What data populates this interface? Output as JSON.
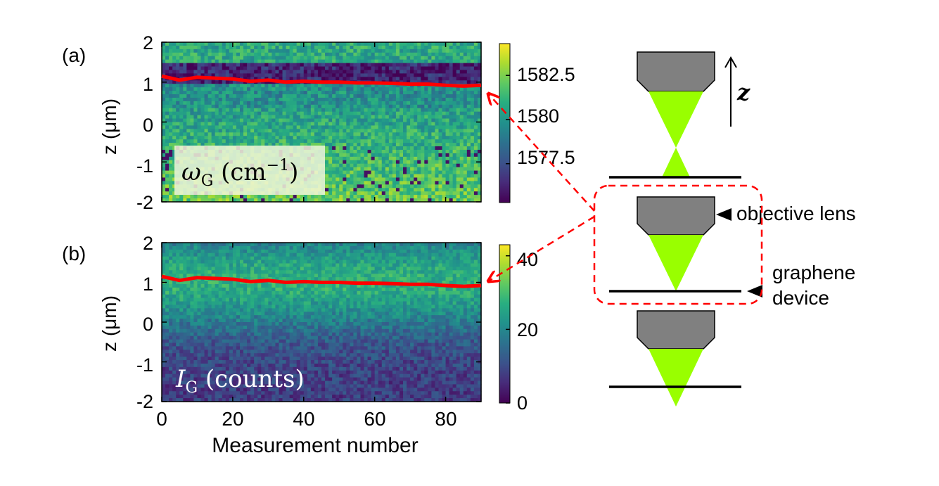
{
  "chart_data": [
    {
      "type": "heatmap",
      "panel_label": "(a)",
      "ylabel": "z  (μm)",
      "y_ticks": [
        "2",
        "1",
        "0",
        "-1",
        "-2"
      ],
      "ylim": [
        -2,
        2
      ],
      "xlim": [
        0,
        90
      ],
      "x_ticks_shown": false,
      "quantity_label_main": "ω",
      "quantity_label_sub": "G",
      "quantity_label_rest": " (cm",
      "quantity_label_sup": "−1",
      "quantity_label_close": ")",
      "colorbar_ticks": [
        "1582.5",
        "1580",
        "1577.5"
      ],
      "colorbar_tick_values": [
        1582.5,
        1580,
        1577.5
      ],
      "colorbar_range": [
        1575.3,
        1584.3
      ],
      "colormap": "viridis",
      "focus_line_color": "#ff0000",
      "focus_line": {
        "x": [
          0,
          5,
          10,
          15,
          20,
          25,
          30,
          35,
          40,
          45,
          50,
          55,
          60,
          65,
          70,
          75,
          80,
          85,
          90
        ],
        "y": [
          1.15,
          1.05,
          1.12,
          1.1,
          1.08,
          1.02,
          1.05,
          1.0,
          1.02,
          1.0,
          1.0,
          0.98,
          0.98,
          0.97,
          0.95,
          0.95,
          0.92,
          0.9,
          0.92
        ]
      }
    },
    {
      "type": "heatmap",
      "panel_label": "(b)",
      "ylabel": "z  (μm)",
      "y_ticks": [
        "2",
        "1",
        "0",
        "-1",
        "-2"
      ],
      "ylim": [
        -2,
        2
      ],
      "xlim": [
        0,
        90
      ],
      "xlabel": "Measurement number",
      "x_ticks": [
        "0",
        "20",
        "40",
        "60",
        "80"
      ],
      "x_tick_values": [
        0,
        20,
        40,
        60,
        80
      ],
      "quantity_label_main": "I",
      "quantity_label_sub": "G",
      "quantity_label_rest": " (counts)",
      "colorbar_ticks": [
        "40",
        "20",
        "0"
      ],
      "colorbar_tick_values": [
        40,
        20,
        0
      ],
      "colorbar_range": [
        0,
        43
      ],
      "colormap": "viridis",
      "focus_line_color": "#ff0000",
      "focus_line": {
        "x": [
          0,
          5,
          10,
          15,
          20,
          25,
          30,
          35,
          40,
          45,
          50,
          55,
          60,
          65,
          70,
          75,
          80,
          85,
          90
        ],
        "y": [
          1.15,
          1.05,
          1.12,
          1.1,
          1.08,
          1.02,
          1.05,
          1.0,
          1.02,
          1.0,
          1.0,
          0.98,
          0.98,
          0.97,
          0.95,
          0.95,
          0.92,
          0.9,
          0.92
        ]
      }
    }
  ],
  "diagram": {
    "z_axis_label": "z",
    "lens_label": "objective lens",
    "device_label_line1": "graphene",
    "device_label_line2": "device"
  },
  "colors": {
    "beam": "#99ff00",
    "lens": "#808080",
    "highlight": "#ff0000",
    "label_box": "#f2f7d9"
  }
}
